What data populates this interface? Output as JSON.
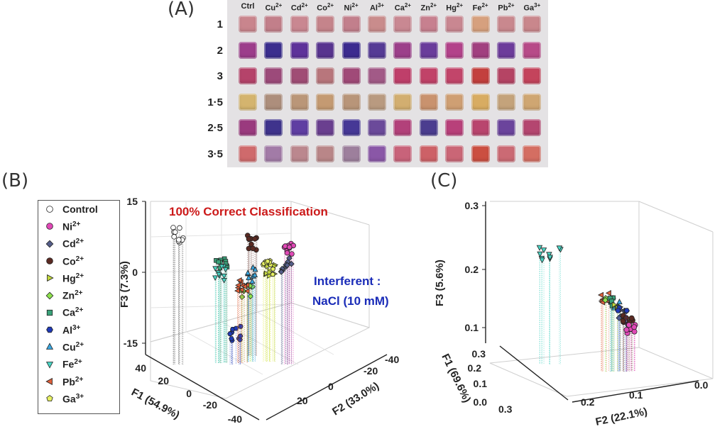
{
  "panels": {
    "a": "(A)",
    "b": "(B)",
    "c": "(C)"
  },
  "plate": {
    "columns": [
      "Ctrl",
      "Cu",
      "Cd",
      "Co",
      "Ni",
      "Al",
      "Ca",
      "Zn",
      "Hg",
      "Fe",
      "Pb",
      "Ga"
    ],
    "column_charges": [
      "",
      "2+",
      "2+",
      "2+",
      "2+",
      "3+",
      "2+",
      "2+",
      "2+",
      "2+",
      "2+",
      "3+"
    ],
    "rows": [
      "1",
      "2",
      "3",
      "1·5",
      "2·5",
      "3·5"
    ],
    "well_colors": [
      [
        "#c9858d",
        "#c27f8a",
        "#c98791",
        "#c5848b",
        "#c27f8c",
        "#c98c8c",
        "#c98892",
        "#c7808f",
        "#c98791",
        "#d6a07e",
        "#c9888e",
        "#c9878c"
      ],
      [
        "#9c3d8b",
        "#3b2e8e",
        "#5e329a",
        "#58348f",
        "#3c2b8f",
        "#553b95",
        "#9c3f8a",
        "#6a3c9b",
        "#b3428a",
        "#a1407f",
        "#6d3c9b",
        "#b74b88"
      ],
      [
        "#b5436a",
        "#9c4a7a",
        "#a04d75",
        "#b8767c",
        "#a04a78",
        "#a25a87",
        "#bf3f6a",
        "#c14268",
        "#c2456a",
        "#c3403e",
        "#b54464",
        "#c4445c"
      ],
      [
        "#d4b46e",
        "#ad8e7c",
        "#ba9678",
        "#c49a72",
        "#b89579",
        "#b99a80",
        "#d2ae70",
        "#c9926e",
        "#cf9f73",
        "#d8ac62",
        "#c4a37b",
        "#cfa672"
      ],
      [
        "#9a3a7e",
        "#3f338c",
        "#5f3ea2",
        "#6a3f8f",
        "#463896",
        "#6b4a9a",
        "#b2417a",
        "#4b3d8f",
        "#b8407a",
        "#b9456e",
        "#6b449c",
        "#b44670"
      ],
      [
        "#cf6a6c",
        "#a27ba7",
        "#bb878e",
        "#b98688",
        "#9d7f9c",
        "#8a57a7",
        "#c8637a",
        "#cd6167",
        "#ca6676",
        "#cb4f41",
        "#cb6a74",
        "#d46e62"
      ]
    ]
  },
  "legend": [
    {
      "name": "Control",
      "sup": "",
      "color": "#ffffff",
      "marker": "circle"
    },
    {
      "name": "Ni",
      "sup": "2+",
      "color": "#e048b6",
      "marker": "circle"
    },
    {
      "name": "Cd",
      "sup": "2+",
      "color": "#555e8a",
      "marker": "diamond"
    },
    {
      "name": "Co",
      "sup": "2+",
      "color": "#5a2a22",
      "marker": "circle"
    },
    {
      "name": "Hg",
      "sup": "2+",
      "color": "#c2d83c",
      "marker": "triangle-right"
    },
    {
      "name": "Zn",
      "sup": "2+",
      "color": "#8de24d",
      "marker": "diamond"
    },
    {
      "name": "Ca",
      "sup": "2+",
      "color": "#3aa37a",
      "marker": "square"
    },
    {
      "name": "Al",
      "sup": "3+",
      "color": "#1f3ab8",
      "marker": "hexagon"
    },
    {
      "name": "Cu",
      "sup": "2+",
      "color": "#3aa7e0",
      "marker": "triangle-up"
    },
    {
      "name": "Fe",
      "sup": "2+",
      "color": "#49d4c4",
      "marker": "triangle-down"
    },
    {
      "name": "Pb",
      "sup": "2+",
      "color": "#e0603a",
      "marker": "triangle-left"
    },
    {
      "name": "Ga",
      "sup": "3+",
      "color": "#e6f062",
      "marker": "pentagon"
    }
  ],
  "chart_b": {
    "annotation": "100% Correct Classification",
    "annotation_color": "#cc1a1a",
    "interferent_line1": "Interferent :",
    "interferent_line2": "NaCl (10 mM)",
    "interferent_color": "#1a2cb8",
    "z_label": "F3 (7.3%)",
    "x_label": "F1 (54.9%)",
    "y_label": "F2 (33.0%)",
    "z_ticks": [
      "15",
      "0",
      "-15"
    ],
    "x_ticks": [
      "40",
      "20",
      "0",
      "-20",
      "-40"
    ],
    "y_ticks": [
      "-40",
      "-20",
      "0",
      "20"
    ]
  },
  "chart_c": {
    "z_label": "F3 (5.6%)",
    "x_label": "F1 (69.6%)",
    "y_label": "F2 (22.1%)",
    "z_ticks": [
      "0.3",
      "0.2",
      "0.1"
    ],
    "x_ticks": [
      "0.3",
      "0.2",
      "0.1",
      "0.0"
    ],
    "y_ticks": [
      "0.3",
      "0.2",
      "0.1",
      "0.0"
    ]
  },
  "chart_data": [
    {
      "type": "scatter",
      "title": "",
      "annotation": "100% Correct Classification",
      "xlabel": "F1 (54.9%)",
      "ylabel": "F2 (33.0%)",
      "zlabel": "F3 (7.3%)",
      "xlim": [
        -40,
        40
      ],
      "ylim": [
        -40,
        20
      ],
      "zlim": [
        -15,
        15
      ],
      "series": [
        {
          "name": "Control",
          "centroid": [
            30,
            20,
            8
          ]
        },
        {
          "name": "Ni2+",
          "centroid": [
            -5,
            -35,
            4
          ]
        },
        {
          "name": "Cd2+",
          "centroid": [
            -5,
            -30,
            1
          ]
        },
        {
          "name": "Co2+",
          "centroid": [
            -5,
            -20,
            6
          ]
        },
        {
          "name": "Hg2+",
          "centroid": [
            -10,
            -15,
            -3
          ]
        },
        {
          "name": "Zn2+",
          "centroid": [
            5,
            -10,
            -3
          ]
        },
        {
          "name": "Ca2+",
          "centroid": [
            20,
            -10,
            2
          ]
        },
        {
          "name": "Al3+",
          "centroid": [
            -5,
            -5,
            -13
          ]
        },
        {
          "name": "Cu2+",
          "centroid": [
            -5,
            -15,
            0
          ]
        },
        {
          "name": "Fe2+",
          "centroid": [
            20,
            -15,
            0
          ]
        },
        {
          "name": "Pb2+",
          "centroid": [
            5,
            -5,
            -3
          ]
        },
        {
          "name": "Ga3+",
          "centroid": [
            -15,
            -20,
            0
          ]
        }
      ]
    },
    {
      "type": "scatter",
      "title": "",
      "xlabel": "F1 (69.6%)",
      "ylabel": "F2 (22.1%)",
      "zlabel": "F3 (5.6%)",
      "xlim": [
        0.0,
        0.3
      ],
      "ylim": [
        0.0,
        0.3
      ],
      "zlim": [
        0.1,
        0.3
      ],
      "series": [
        {
          "name": "Fe2+",
          "centroid": [
            0.25,
            0.3,
            0.22
          ]
        },
        {
          "name": "Pb2+",
          "centroid": [
            0.2,
            0.22,
            0.14
          ]
        },
        {
          "name": "Ni2+",
          "centroid": [
            0.15,
            0.15,
            0.09
          ]
        },
        {
          "name": "Co2+",
          "centroid": [
            0.16,
            0.16,
            0.1
          ]
        },
        {
          "name": "Cu2+",
          "centroid": [
            0.18,
            0.19,
            0.12
          ]
        }
      ]
    }
  ]
}
